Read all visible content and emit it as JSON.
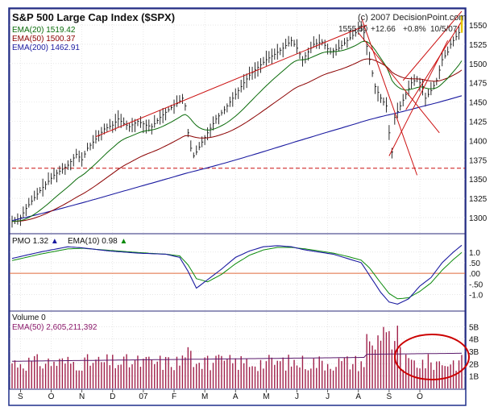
{
  "chart_data": [
    {
      "panel": "price",
      "type": "line",
      "title": "S&P 500 Large Cap Index ($SPX)",
      "copyright": "(c) 2007 DecisionPoint.com",
      "last_bar": {
        "price": "1555.50",
        "change": "+12.66",
        "pct": "+0.8%",
        "date": "10/5/07"
      },
      "legend": [
        {
          "name": "EMA(20)",
          "value": "1519.42",
          "color": "#0a6b0a"
        },
        {
          "name": "EMA(50)",
          "value": "1500.37",
          "color": "#8b0000"
        },
        {
          "name": "EMA(200)",
          "value": "1462.91",
          "color": "#1a1aa0"
        }
      ],
      "ylim": [
        1280,
        1570
      ],
      "yticks": [
        1300,
        1325,
        1350,
        1375,
        1400,
        1425,
        1450,
        1475,
        1500,
        1525,
        1550
      ],
      "support_level": 1364,
      "months": [
        "S",
        "O",
        "N",
        "D",
        "07",
        "F",
        "M",
        "A",
        "M",
        "J",
        "J",
        "A",
        "S",
        "O"
      ],
      "close_anchors": [
        [
          0,
          1295
        ],
        [
          3,
          1300
        ],
        [
          5,
          1312
        ],
        [
          10,
          1335
        ],
        [
          15,
          1355
        ],
        [
          20,
          1368
        ],
        [
          23,
          1382
        ],
        [
          25,
          1375
        ],
        [
          27,
          1390
        ],
        [
          30,
          1402
        ],
        [
          33,
          1415
        ],
        [
          36,
          1420
        ],
        [
          38,
          1428
        ],
        [
          40,
          1422
        ],
        [
          42,
          1418
        ],
        [
          45,
          1425
        ],
        [
          48,
          1420
        ],
        [
          50,
          1418
        ],
        [
          53,
          1430
        ],
        [
          56,
          1440
        ],
        [
          59,
          1448
        ],
        [
          61,
          1455
        ],
        [
          62,
          1445
        ],
        [
          63,
          1410
        ],
        [
          64,
          1390
        ],
        [
          65,
          1380
        ],
        [
          66,
          1385
        ],
        [
          68,
          1398
        ],
        [
          70,
          1410
        ],
        [
          73,
          1428
        ],
        [
          76,
          1440
        ],
        [
          79,
          1455
        ],
        [
          82,
          1470
        ],
        [
          85,
          1485
        ],
        [
          88,
          1495
        ],
        [
          91,
          1505
        ],
        [
          94,
          1512
        ],
        [
          97,
          1520
        ],
        [
          100,
          1530
        ],
        [
          102,
          1520
        ],
        [
          104,
          1505
        ],
        [
          106,
          1515
        ],
        [
          108,
          1525
        ],
        [
          111,
          1528
        ],
        [
          114,
          1515
        ],
        [
          117,
          1520
        ],
        [
          120,
          1530
        ],
        [
          123,
          1540
        ],
        [
          125,
          1550
        ],
        [
          126,
          1540
        ],
        [
          128,
          1505
        ],
        [
          130,
          1470
        ],
        [
          132,
          1455
        ],
        [
          134,
          1445
        ],
        [
          135,
          1410
        ],
        [
          136,
          1385
        ],
        [
          137,
          1430
        ],
        [
          139,
          1445
        ],
        [
          141,
          1460
        ],
        [
          143,
          1475
        ],
        [
          145,
          1480
        ],
        [
          147,
          1470
        ],
        [
          148,
          1455
        ],
        [
          150,
          1465
        ],
        [
          152,
          1478
        ],
        [
          154,
          1505
        ],
        [
          156,
          1515
        ],
        [
          157,
          1525
        ],
        [
          158,
          1530
        ],
        [
          160,
          1540
        ],
        [
          161,
          1555.5
        ]
      ],
      "trend_lines": [
        {
          "points": [
            [
              30,
              1405
            ],
            [
              127,
              1550
            ]
          ],
          "color": "#cc1111"
        },
        {
          "points": [
            [
              125,
              1560
            ],
            [
              145,
              1355
            ]
          ],
          "color": "#cc1111"
        },
        {
          "points": [
            [
              124,
              1540
            ],
            [
              153,
              1410
            ]
          ],
          "color": "#cc1111"
        },
        {
          "points": [
            [
              135,
              1380
            ],
            [
              156,
              1530
            ]
          ],
          "color": "#cc1111"
        },
        {
          "points": [
            [
              140,
              1478
            ],
            [
              161,
              1568
            ]
          ],
          "color": "#cc1111"
        },
        {
          "points": [
            [
              141,
              1440
            ],
            [
              161,
              1555
            ]
          ],
          "color": "#cc1111"
        }
      ]
    },
    {
      "panel": "pmo",
      "type": "line",
      "legend": [
        {
          "name": "PMO",
          "value": "1.32",
          "color": "#1a1aa0",
          "arrow": "▲"
        },
        {
          "name": "EMA(10)",
          "value": "0.98",
          "color": "#0a8a0a",
          "arrow": "▲"
        }
      ],
      "ylim": [
        -1.7,
        1.75
      ],
      "yticks": [
        1.0,
        0.5,
        0.0,
        -0.5,
        -1.0
      ],
      "ytick_labels": [
        "1.0",
        ".50",
        ".00",
        "-.50",
        "-1.0"
      ],
      "pmo_anchors": [
        [
          0,
          0.7
        ],
        [
          10,
          1.0
        ],
        [
          20,
          1.25
        ],
        [
          25,
          1.2
        ],
        [
          35,
          1.05
        ],
        [
          45,
          0.95
        ],
        [
          55,
          0.9
        ],
        [
          60,
          0.75
        ],
        [
          63,
          0.1
        ],
        [
          66,
          -0.7
        ],
        [
          70,
          -0.3
        ],
        [
          75,
          0.2
        ],
        [
          80,
          0.75
        ],
        [
          85,
          1.05
        ],
        [
          90,
          1.25
        ],
        [
          95,
          1.3
        ],
        [
          100,
          1.25
        ],
        [
          105,
          1.1
        ],
        [
          110,
          1.0
        ],
        [
          115,
          0.9
        ],
        [
          120,
          0.7
        ],
        [
          125,
          0.5
        ],
        [
          128,
          -0.1
        ],
        [
          132,
          -0.9
        ],
        [
          135,
          -1.35
        ],
        [
          138,
          -1.45
        ],
        [
          142,
          -1.2
        ],
        [
          146,
          -0.6
        ],
        [
          150,
          -0.2
        ],
        [
          154,
          0.5
        ],
        [
          158,
          1.0
        ],
        [
          161,
          1.32
        ]
      ],
      "ema_anchors": [
        [
          0,
          0.6
        ],
        [
          10,
          0.9
        ],
        [
          20,
          1.15
        ],
        [
          25,
          1.18
        ],
        [
          35,
          1.08
        ],
        [
          45,
          0.98
        ],
        [
          55,
          0.9
        ],
        [
          60,
          0.82
        ],
        [
          63,
          0.4
        ],
        [
          66,
          -0.25
        ],
        [
          70,
          -0.4
        ],
        [
          75,
          -0.05
        ],
        [
          80,
          0.45
        ],
        [
          85,
          0.85
        ],
        [
          90,
          1.1
        ],
        [
          95,
          1.22
        ],
        [
          100,
          1.22
        ],
        [
          105,
          1.15
        ],
        [
          110,
          1.05
        ],
        [
          115,
          0.95
        ],
        [
          120,
          0.8
        ],
        [
          125,
          0.62
        ],
        [
          128,
          0.25
        ],
        [
          132,
          -0.45
        ],
        [
          135,
          -0.95
        ],
        [
          138,
          -1.2
        ],
        [
          142,
          -1.15
        ],
        [
          146,
          -0.85
        ],
        [
          150,
          -0.45
        ],
        [
          154,
          0.15
        ],
        [
          158,
          0.65
        ],
        [
          161,
          0.98
        ]
      ]
    },
    {
      "panel": "volume",
      "type": "bar",
      "label": "Volume",
      "volume_value": "0",
      "ema_label": "EMA(50)",
      "ema_value": "2,605,211,392",
      "ylim_billions": [
        0,
        6
      ],
      "yticks": [
        1,
        2,
        3,
        4,
        5
      ],
      "ytick_labels": [
        "1B",
        "2B",
        "3B",
        "4B",
        "5B"
      ],
      "volume_ema_billions": 2.6,
      "highlight": {
        "description": "circled recent volume",
        "color": "#cc0000"
      }
    }
  ]
}
